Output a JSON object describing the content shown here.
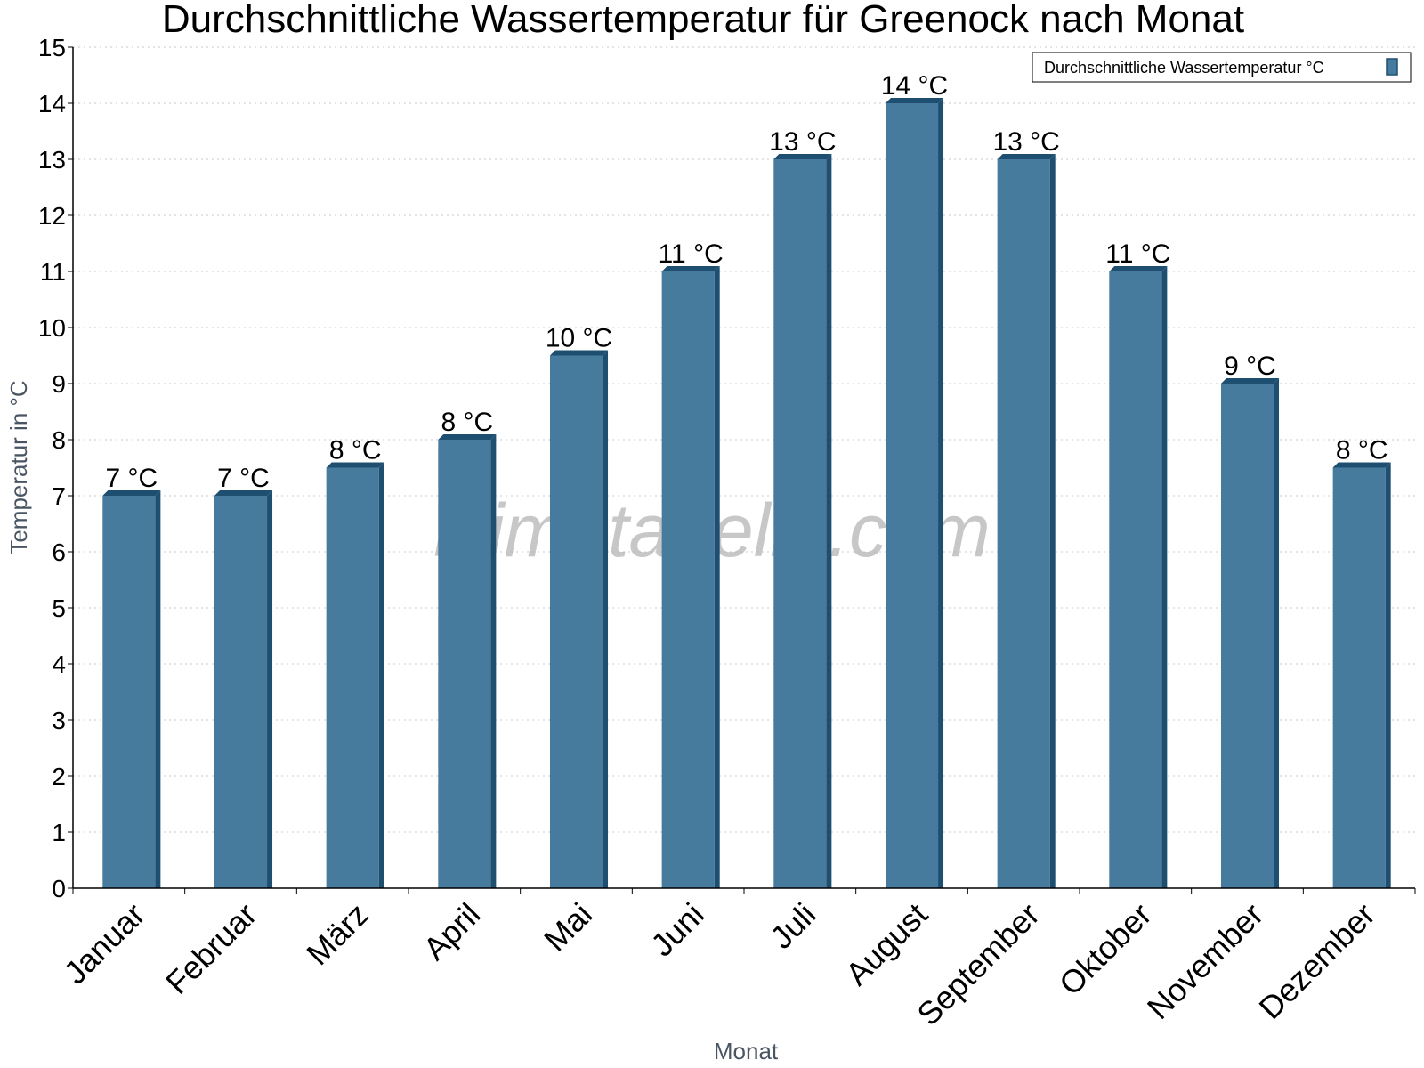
{
  "chart_data": {
    "type": "bar",
    "title": "Durchschnittliche Wassertemperatur für Greenock nach Monat",
    "xlabel": "Monat",
    "ylabel": "Temperatur in °C",
    "ylim": [
      0,
      15
    ],
    "yticks": [
      0,
      1,
      2,
      3,
      4,
      5,
      6,
      7,
      8,
      9,
      10,
      11,
      12,
      13,
      14,
      15
    ],
    "grid": true,
    "legend_position": "top-right",
    "categories": [
      "Januar",
      "Februar",
      "März",
      "April",
      "Mai",
      "Juni",
      "Juli",
      "August",
      "September",
      "Oktober",
      "November",
      "Dezember"
    ],
    "series": [
      {
        "name": "Durchschnittliche Wassertemperatur °C",
        "values": [
          7,
          7,
          7.5,
          8,
          9.5,
          11,
          13,
          14,
          13,
          11,
          9,
          7.5
        ],
        "labels": [
          "7 °C",
          "7 °C",
          "8 °C",
          "8 °C",
          "10 °C",
          "11 °C",
          "13 °C",
          "14 °C",
          "13 °C",
          "11 °C",
          "9 °C",
          "8 °C"
        ],
        "color": "#467b9d",
        "edge_color": "#1f4f70"
      }
    ]
  },
  "watermark": "klimatabelle.com"
}
